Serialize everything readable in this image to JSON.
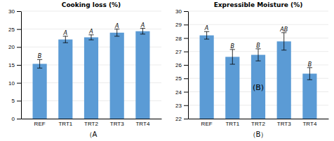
{
  "chart_data": [
    {
      "type": "bar",
      "title": "Cooking loss (%)",
      "categories": [
        "REF",
        "TRT1",
        "TRT2",
        "TRT3",
        "TRT4"
      ],
      "values": [
        15.3,
        22.1,
        22.7,
        24.0,
        24.4
      ],
      "errors": [
        1.2,
        0.9,
        0.7,
        1.0,
        0.8
      ],
      "superscripts": [
        "B",
        "A",
        "A",
        "A",
        "A"
      ],
      "ylim": [
        0,
        30
      ],
      "yticks": [
        0,
        5,
        10,
        15,
        20,
        25,
        30
      ],
      "xlabel": "（A",
      "color": "#5B9BD5",
      "grid": true
    },
    {
      "type": "bar",
      "title": "Expressible Moisture  (%)",
      "categories": [
        "REF",
        "TRT1",
        "TRT2",
        "TRT3",
        "TRT4"
      ],
      "values": [
        28.2,
        26.6,
        26.75,
        27.75,
        25.35
      ],
      "errors": [
        0.28,
        0.55,
        0.45,
        0.65,
        0.45
      ],
      "superscripts": [
        "A",
        "B",
        "B",
        "AB",
        "B"
      ],
      "ylim": [
        22,
        30
      ],
      "yticks": [
        22,
        23,
        24,
        25,
        26,
        27,
        28,
        29,
        30
      ],
      "xlabel": "（B）",
      "annotations": [
        {
          "text": "(B)",
          "x": "TRT2",
          "y": 24.3
        }
      ],
      "color": "#5B9BD5",
      "grid": true
    }
  ]
}
